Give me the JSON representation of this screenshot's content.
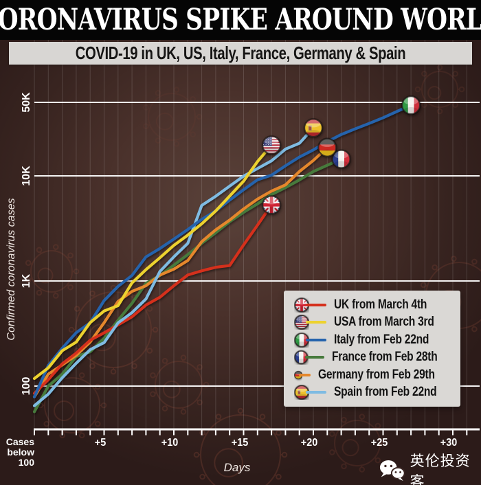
{
  "title_banner": "CORONAVIRUS SPIKE AROUND WORLD",
  "subtitle": "COVID-19 in UK, US, Italy, France, Germany & Spain",
  "watermark": {
    "label": "英伦投资客",
    "icon": "wechat-icon"
  },
  "colors": {
    "background": "#3a2522",
    "banner": "#050505",
    "subtitle_bar": "#d8d6d3",
    "legend_bg": "#dad8d5",
    "gridline": "#ffffff",
    "uk": "#d5301c",
    "usa": "#edd22f",
    "italy": "#2563ac",
    "france": "#477a3c",
    "germany": "#e5872c",
    "spain": "#7fbbe2"
  },
  "chart_data": {
    "type": "line",
    "title": "COVID-19 in UK, US, Italy, France, Germany & Spain",
    "xlabel": "Days",
    "ylabel": "Confirmed coronavirus cases",
    "y_scale": "log",
    "ylim": [
      60,
      60000
    ],
    "xlim": [
      0,
      32
    ],
    "grid": {
      "horizontal": true,
      "vertical_day_lines": true
    },
    "legend_position": "inside bottom-right",
    "y_ticks": [
      {
        "label": "50K",
        "value": 50000
      },
      {
        "label": "10K",
        "value": 10000
      },
      {
        "label": "1K",
        "value": 1000
      },
      {
        "label": "100",
        "value": 100
      }
    ],
    "x_ticks": [
      {
        "label": "+5",
        "value": 5
      },
      {
        "label": "+10",
        "value": 10
      },
      {
        "label": "+15",
        "value": 15
      },
      {
        "label": "+20",
        "value": 20
      },
      {
        "label": "+25",
        "value": 25
      },
      {
        "label": "+30",
        "value": 30
      }
    ],
    "x_axis_note_lines": [
      "Cases",
      "below",
      "100"
    ],
    "series": [
      {
        "name": "UK",
        "legend_label": "UK from March 4th",
        "flag": "uk",
        "color": "#d5301c",
        "values": [
          85,
          115,
          163,
          206,
          273,
          321,
          382,
          456,
          590,
          700,
          900,
          1140,
          1250,
          1350,
          1400,
          2200,
          3400,
          5300
        ]
      },
      {
        "name": "USA",
        "legend_label": "USA from March 3rd",
        "flag": "usa",
        "color": "#edd22f",
        "values": [
          118,
          149,
          217,
          262,
          402,
          518,
          583,
          959,
          1281,
          1663,
          2179,
          2727,
          3499,
          4632,
          6421,
          8900,
          13700,
          19600
        ]
      },
      {
        "name": "Italy",
        "legend_label": "Italy from Feb 22nd",
        "flag": "italy",
        "color": "#2563ac",
        "values": [
          79,
          157,
          229,
          322,
          400,
          650,
          888,
          1128,
          1694,
          2036,
          2502,
          3089,
          3858,
          4636,
          5883,
          7375,
          9172,
          10149,
          12462,
          15113,
          17660,
          21157,
          24747,
          27980,
          31506,
          35713,
          41035,
          47021
        ]
      },
      {
        "name": "France",
        "legend_label": "France from Feb 28th",
        "flag": "france",
        "color": "#477a3c",
        "values": [
          57,
          100,
          130,
          191,
          212,
          285,
          423,
          613,
          949,
          1126,
          1412,
          1784,
          2281,
          2876,
          3661,
          4499,
          5423,
          6633,
          7730,
          9134,
          10995,
          12612,
          14459
        ]
      },
      {
        "name": "Germany",
        "legend_label": "Germany from Feb 29th",
        "flag": "germany",
        "color": "#e5872c",
        "values": [
          79,
          130,
          159,
          196,
          262,
          400,
          639,
          795,
          902,
          1139,
          1296,
          1567,
          2369,
          3062,
          3795,
          4838,
          6012,
          7156,
          8198,
          10999,
          14000,
          18610
        ]
      },
      {
        "name": "Spain",
        "legend_label": "Spain from Feb 22nd",
        "flag": "spain",
        "color": "#7fbbe2",
        "values": [
          65,
          84,
          120,
          165,
          222,
          259,
          400,
          500,
          673,
          1231,
          1695,
          2277,
          5232,
          6391,
          7988,
          9942,
          11748,
          13910,
          17963,
          20410,
          28600
        ]
      }
    ]
  }
}
